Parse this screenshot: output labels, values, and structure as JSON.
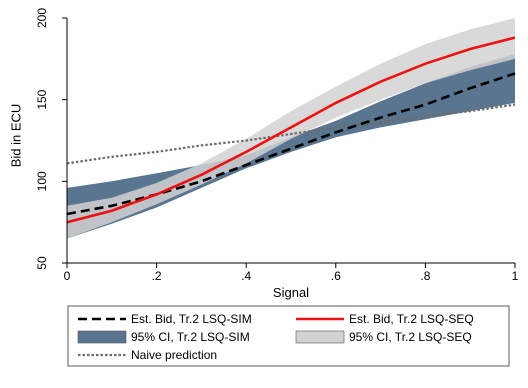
{
  "chart_data": {
    "type": "line",
    "xlabel": "Signal",
    "ylabel": "Bid in ECU",
    "xlim": [
      0,
      1
    ],
    "ylim": [
      50,
      200
    ],
    "xticks": [
      "0",
      ".2",
      ".4",
      ".6",
      ".8",
      "1"
    ],
    "xtick_values": [
      0,
      0.2,
      0.4,
      0.6,
      0.8,
      1
    ],
    "yticks": [
      "50",
      "100",
      "150",
      "200"
    ],
    "ytick_values": [
      50,
      100,
      150,
      200
    ],
    "grid": false,
    "legend_position": "bottom",
    "x": [
      0,
      0.1,
      0.2,
      0.3,
      0.4,
      0.5,
      0.6,
      0.7,
      0.8,
      0.9,
      1.0
    ],
    "series": [
      {
        "name": "Est. Bid, Tr.2 LSQ-SIM",
        "style": "dashed",
        "color": "#000000",
        "values": [
          80,
          85,
          92,
          100,
          110,
          120,
          130,
          139,
          147,
          157,
          166
        ]
      },
      {
        "name": "Est. Bid, Tr.2 LSQ-SEQ",
        "style": "solid",
        "color": "#ee1111",
        "values": [
          75,
          82,
          92,
          104,
          118,
          133,
          148,
          161,
          172,
          181,
          188
        ]
      },
      {
        "name": "Naive prediction",
        "style": "dotted",
        "color": "#6b6b6b",
        "values": [
          111,
          115,
          118,
          122,
          125,
          129,
          133,
          136,
          140,
          143,
          147
        ]
      }
    ],
    "bands": [
      {
        "name": "95% CI, Tr.2 LSQ-SIM",
        "color": "#5a7590",
        "lower": [
          65,
          74,
          84,
          96,
          108,
          118,
          127,
          133,
          138,
          143,
          148
        ],
        "upper": [
          96,
          100,
          105,
          110,
          116,
          127,
          137,
          149,
          160,
          170,
          178
        ]
      },
      {
        "name": "95% CI, Tr.2 LSQ-SEQ",
        "color": "#d2d2d2",
        "lower": [
          65,
          75,
          86,
          98,
          111,
          126,
          139,
          150,
          160,
          168,
          175
        ],
        "upper": [
          85,
          90,
          99,
          111,
          126,
          143,
          158,
          172,
          184,
          193,
          200
        ]
      }
    ],
    "legend": [
      {
        "label": "Est. Bid, Tr.2 LSQ-SIM",
        "kind": "line",
        "series": 0
      },
      {
        "label": "Est. Bid, Tr.2 LSQ-SEQ",
        "kind": "line",
        "series": 1
      },
      {
        "label": "95% CI, Tr.2 LSQ-SIM",
        "kind": "band",
        "band": 0
      },
      {
        "label": "95% CI, Tr.2 LSQ-SEQ",
        "kind": "band",
        "band": 1
      },
      {
        "label": "Naive prediction",
        "kind": "line",
        "series": 2
      }
    ]
  }
}
